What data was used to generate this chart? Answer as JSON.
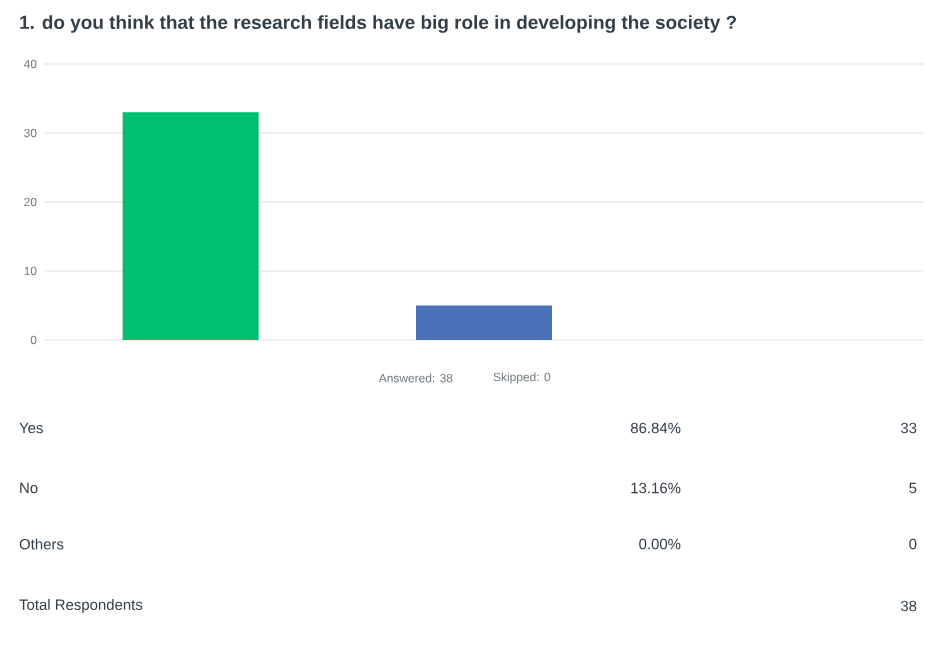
{
  "chart_data": {
    "type": "bar",
    "title": "1. do you think that the research fields have big role in developing the society ?",
    "categories": [
      null,
      null,
      null
    ],
    "values": [
      33,
      5,
      0
    ],
    "colors": [
      "#00bf6f",
      "#4a72b8",
      "#9d9d9d"
    ],
    "ylim": [
      0,
      40
    ],
    "yticks": [
      0,
      10,
      20,
      30,
      40
    ],
    "grid": "y",
    "annotations": [
      "Answered: 38",
      "Skipped: 0",
      "Yes",
      "86.84%",
      "33",
      "No",
      "13.16%",
      "5",
      "Others",
      "0.00%",
      "0",
      "Total Respondents",
      "38"
    ]
  }
}
